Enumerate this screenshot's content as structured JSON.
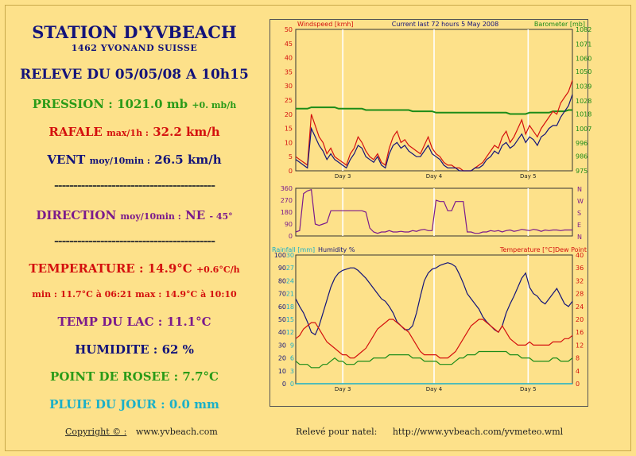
{
  "station": {
    "title": "STATION D'YVBEACH",
    "location": "1462 YVONAND  SUISSE"
  },
  "readings": {
    "releve": "RELEVE DU 05/05/08 A 10h15",
    "pression_label": "PRESSION :",
    "pression_value": "1021.0 mb",
    "pression_trend": "+0. mb/h",
    "rafale_label": "RAFALE",
    "rafale_sub": "max/1h :",
    "rafale_value": "32.2 km/h",
    "vent_label": "VENT",
    "vent_sub": "moy/10min :",
    "vent_value": "26.5 km/h",
    "separator": "------------------------------------------",
    "direction_label": "DIRECTION",
    "direction_sub": "moy/10min :",
    "direction_value": "NE",
    "direction_deg": "- 45°",
    "temp_label": "TEMPERATURE :",
    "temp_value": "14.9°C",
    "temp_trend": "+0.6°C/h",
    "temp_minmax": "min : 11.7°C à 06:21   max : 14.9°C à 10:10",
    "lac_label": "TEMP DU LAC :",
    "lac_value": "11.1°C",
    "hum_label": "HUMIDITE :",
    "hum_value": "62 %",
    "rosee_label": "POINT DE ROSEE :",
    "rosee_value": "7.7°C",
    "pluie_label": "PLUIE DU JOUR :",
    "pluie_value": "0.0 mm"
  },
  "footer": {
    "copyright": "Copyright © :",
    "site": "www.yvbeach.com",
    "natel_label": "Relevé pour natel:",
    "natel_url": "http://www.yvbeach.com/yvmeteo.wml"
  },
  "chart_data": [
    {
      "type": "line",
      "title": "Current last 72 hours 5 May 2008",
      "left_axis_label": "Windspeed [kmh]",
      "right_axis_label": "Barometer [mb]",
      "x_labels": [
        "Day 3",
        "Day 4",
        "Day 5"
      ],
      "ylim_left": [
        0,
        50
      ],
      "yticks_left": [
        0,
        5,
        10,
        15,
        20,
        25,
        30,
        35,
        40,
        45,
        50
      ],
      "ylim_right": [
        975,
        1082
      ],
      "yticks_right": [
        975,
        986,
        996,
        1007,
        1018,
        1028,
        1039,
        1050,
        1060,
        1071,
        1082
      ],
      "series": [
        {
          "color": "#d4100e",
          "values": [
            5,
            4,
            3,
            2,
            20,
            16,
            12,
            10,
            6,
            8,
            5,
            4,
            3,
            2,
            6,
            8,
            12,
            10,
            7,
            5,
            4,
            6,
            3,
            2,
            8,
            12,
            14,
            10,
            11,
            9,
            8,
            7,
            6,
            9,
            12,
            8,
            6,
            5,
            3,
            2,
            2,
            1,
            1,
            0,
            0,
            0,
            1,
            2,
            3,
            5,
            7,
            9,
            8,
            12,
            14,
            10,
            12,
            15,
            18,
            13,
            16,
            14,
            12,
            15,
            17,
            19,
            21,
            20,
            24,
            26,
            28,
            32
          ]
        },
        {
          "color": "#13137a",
          "values": [
            4,
            3,
            2,
            1,
            15,
            12,
            9,
            7,
            4,
            6,
            4,
            3,
            2,
            1,
            4,
            6,
            9,
            8,
            5,
            4,
            3,
            5,
            2,
            1,
            6,
            9,
            10,
            8,
            9,
            7,
            6,
            5,
            5,
            7,
            9,
            6,
            5,
            4,
            2,
            1,
            1,
            1,
            0,
            0,
            0,
            0,
            1,
            1,
            2,
            4,
            5,
            7,
            6,
            9,
            10,
            8,
            9,
            11,
            13,
            10,
            12,
            11,
            9,
            12,
            13,
            15,
            16,
            16,
            19,
            21,
            23,
            27
          ]
        },
        {
          "color": "#1c8c18",
          "axis": "right",
          "values": [
            1022,
            1022,
            1022,
            1022,
            1023,
            1023,
            1023,
            1023,
            1023,
            1023,
            1023,
            1022,
            1022,
            1022,
            1022,
            1022,
            1022,
            1022,
            1021,
            1021,
            1021,
            1021,
            1021,
            1021,
            1021,
            1021,
            1021,
            1021,
            1021,
            1021,
            1020,
            1020,
            1020,
            1020,
            1020,
            1020,
            1019,
            1019,
            1019,
            1019,
            1019,
            1019,
            1019,
            1019,
            1019,
            1019,
            1019,
            1019,
            1019,
            1019,
            1019,
            1019,
            1019,
            1019,
            1019,
            1018,
            1018,
            1018,
            1018,
            1018,
            1019,
            1019,
            1019,
            1019,
            1019,
            1019,
            1020,
            1020,
            1020,
            1020,
            1021,
            1021
          ]
        }
      ]
    },
    {
      "type": "line",
      "right_axis_labels": [
        "N",
        "W",
        "S",
        "E",
        "N"
      ],
      "x_labels": [],
      "ylim_left": [
        0,
        360
      ],
      "yticks_left": [
        0,
        90,
        180,
        270,
        360
      ],
      "series": [
        {
          "color": "#7b1a8c",
          "values": [
            30,
            40,
            320,
            340,
            350,
            90,
            80,
            90,
            100,
            190,
            190,
            190,
            190,
            190,
            190,
            190,
            190,
            190,
            180,
            60,
            30,
            20,
            30,
            30,
            40,
            30,
            30,
            35,
            30,
            30,
            40,
            35,
            45,
            50,
            40,
            40,
            270,
            260,
            260,
            190,
            190,
            260,
            260,
            260,
            30,
            30,
            20,
            20,
            30,
            30,
            40,
            35,
            40,
            30,
            40,
            45,
            35,
            40,
            50,
            45,
            40,
            50,
            45,
            35,
            45,
            40,
            45,
            45,
            40,
            45,
            45,
            45
          ]
        }
      ]
    },
    {
      "type": "line",
      "left_axis_label": "Rainfall [mm]",
      "left_axis_label2": "Humidity %",
      "right_axis_label": "Temperature [°C]Dew Point",
      "x_labels": [
        "Day 3",
        "Day 4",
        "Day 5"
      ],
      "ylim_left": [
        0,
        100
      ],
      "yticks_left": [
        0,
        10,
        20,
        30,
        40,
        50,
        60,
        70,
        80,
        90,
        100
      ],
      "yticks_rain": [
        0,
        3,
        6,
        9,
        12,
        15,
        18,
        21,
        24,
        27,
        30
      ],
      "ylim_right": [
        0,
        40
      ],
      "yticks_right": [
        0,
        4,
        8,
        12,
        16,
        20,
        24,
        28,
        32,
        36,
        40
      ],
      "series": [
        {
          "color": "#13137a",
          "name": "Humidity %",
          "values": [
            66,
            60,
            55,
            48,
            40,
            38,
            45,
            55,
            65,
            75,
            82,
            86,
            88,
            89,
            90,
            90,
            88,
            85,
            82,
            78,
            74,
            70,
            66,
            64,
            60,
            55,
            48,
            45,
            42,
            42,
            45,
            55,
            68,
            80,
            86,
            89,
            90,
            92,
            93,
            94,
            93,
            91,
            85,
            78,
            70,
            66,
            62,
            58,
            52,
            48,
            45,
            42,
            40,
            45,
            55,
            62,
            68,
            75,
            82,
            86,
            75,
            70,
            68,
            64,
            62,
            66,
            70,
            74,
            68,
            62,
            60,
            64
          ]
        },
        {
          "color": "#d4100e",
          "values": [
            14,
            15,
            17,
            18,
            19,
            19,
            17,
            15,
            13,
            12,
            11,
            10,
            9,
            9,
            8,
            8,
            9,
            10,
            11,
            13,
            15,
            17,
            18,
            19,
            20,
            20,
            19,
            18,
            17,
            16,
            14,
            12,
            10,
            9,
            9,
            9,
            9,
            8,
            8,
            8,
            9,
            10,
            12,
            14,
            16,
            18,
            19,
            20,
            20,
            19,
            18,
            17,
            16,
            18,
            16,
            14,
            13,
            12,
            12,
            12,
            13,
            12,
            12,
            12,
            12,
            12,
            13,
            13,
            13,
            14,
            14,
            15
          ]
        },
        {
          "color": "#1c8c18",
          "values": [
            7,
            6,
            6,
            6,
            5,
            5,
            5,
            6,
            6,
            7,
            8,
            7,
            7,
            6,
            6,
            6,
            7,
            7,
            7,
            7,
            8,
            8,
            8,
            8,
            9,
            9,
            9,
            9,
            9,
            9,
            8,
            8,
            8,
            7,
            7,
            7,
            7,
            6,
            6,
            6,
            6,
            7,
            8,
            8,
            9,
            9,
            9,
            10,
            10,
            10,
            10,
            10,
            10,
            10,
            10,
            9,
            9,
            9,
            8,
            8,
            8,
            7,
            7,
            7,
            7,
            7,
            8,
            8,
            7,
            7,
            7,
            8
          ]
        },
        {
          "color": "#1ab0c8",
          "name": "Rainfall",
          "values": [
            0,
            0,
            0,
            0,
            0,
            0,
            0,
            0,
            0,
            0,
            0,
            0,
            0,
            0,
            0,
            0,
            0,
            0,
            0,
            0,
            0,
            0,
            0,
            0,
            0,
            0,
            0,
            0,
            0,
            0,
            0,
            0,
            0,
            0,
            0,
            0,
            0,
            0,
            0,
            0,
            0,
            0,
            0,
            0,
            0,
            0,
            0,
            0,
            0,
            0,
            0,
            0,
            0,
            0,
            0,
            0,
            0,
            0,
            0,
            0,
            0,
            0,
            0,
            0,
            0,
            0,
            0,
            0,
            0,
            0,
            0,
            0
          ]
        }
      ]
    }
  ]
}
